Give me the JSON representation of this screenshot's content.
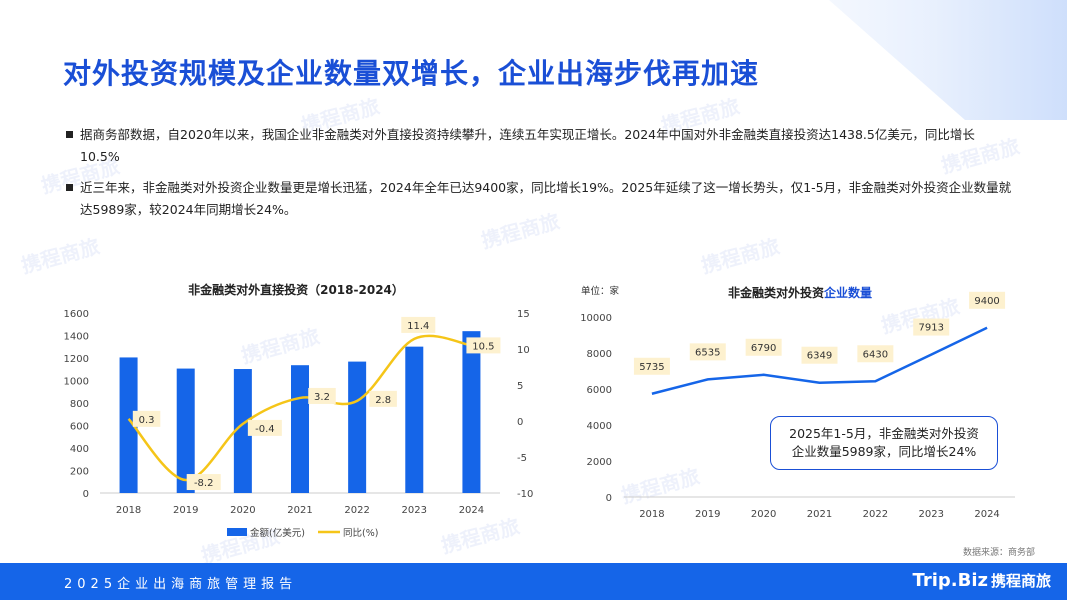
{
  "title": "对外投资规模及企业数量双增长，企业出海步伐再加速",
  "bullets": [
    "据商务部数据，自2020年以来，我国企业非金融类对外直接投资持续攀升，连续五年实现正增长。2024年中国对外非金融类直接投资达1438.5亿美元，同比增长10.5%",
    "近三年来，非金融类对外投资企业数量更是增长迅猛，2024年全年已达9400家，同比增长19%。2025年延续了这一增长势头，仅1-5月，非金融类对外投资企业数量就达5989家，较2024年同期增长24%。"
  ],
  "chart_data": [
    {
      "type": "bar",
      "title": "非金融类对外直接投资（2018-2024）",
      "categories": [
        "2018",
        "2019",
        "2020",
        "2021",
        "2022",
        "2023",
        "2024"
      ],
      "series": [
        {
          "name": "金额(亿美元)",
          "type": "bar",
          "axis": "left",
          "values": [
            1205,
            1106,
            1102,
            1136,
            1168,
            1301,
            1438.5
          ],
          "color": "#1565e8"
        },
        {
          "name": "同比(%)",
          "type": "line",
          "axis": "right",
          "values": [
            0.3,
            -8.2,
            -0.4,
            3.2,
            2.8,
            11.4,
            10.5
          ],
          "labels": [
            "0.3",
            "-8.2",
            "-0.4",
            "3.2",
            "2.8",
            "11.4",
            "10.5"
          ],
          "color": "#f5c518"
        }
      ],
      "left_ylim": [
        0,
        1600
      ],
      "left_ticks": [
        "0",
        "200",
        "400",
        "600",
        "800",
        "1000",
        "1200",
        "1400",
        "1600"
      ],
      "right_ylim": [
        -10,
        15
      ],
      "right_ticks": [
        "-10",
        "-5",
        "0",
        "5",
        "10",
        "15"
      ],
      "legend": [
        "金额(亿美元)",
        "同比(%)"
      ],
      "legend_position": "bottom"
    },
    {
      "type": "line",
      "title_prefix": "非金融类对外投资",
      "title_highlight": "企业数量",
      "unit": "单位：家",
      "categories": [
        "2018",
        "2019",
        "2020",
        "2021",
        "2022",
        "2023",
        "2024"
      ],
      "values": [
        5735,
        6535,
        6790,
        6349,
        6430,
        7913,
        9400
      ],
      "labels": [
        "5735",
        "6535",
        "6790",
        "6349",
        "6430",
        "7913",
        "9400"
      ],
      "ylim": [
        0,
        10000
      ],
      "y_ticks": [
        "0",
        "2000",
        "4000",
        "6000",
        "8000",
        "10000"
      ],
      "color": "#1565e8",
      "annotation": [
        "2025年1-5月，非金融类对外投资",
        "企业数量5989家，同比增长24%"
      ]
    }
  ],
  "source": "数据来源：商务部",
  "footer_text": "2025企业出海商旅管理报告",
  "logo_text": "Trip.Biz",
  "logo_brand": "携程商旅",
  "colors": {
    "accent": "#1a4fd6",
    "bar": "#1565e8",
    "yoy_line": "#f5c518",
    "footer": "#1565e8",
    "label_bg": "#fdf1cf"
  }
}
